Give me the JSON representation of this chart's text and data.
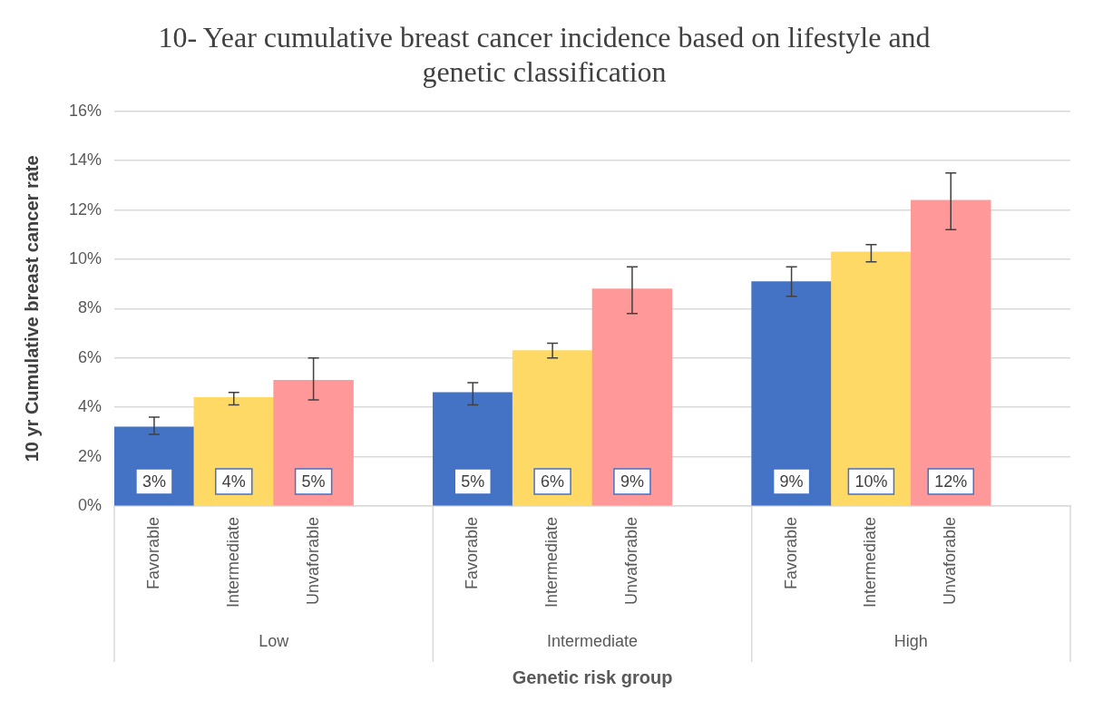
{
  "chart_data": {
    "type": "bar",
    "title": "10- Year cumulative breast cancer incidence based on lifestyle and genetic classification",
    "xlabel": "Genetic risk group",
    "ylabel": "10 yr Cumulative breast cancer rate",
    "categories": [
      "Favorable",
      "Intermediate",
      "Unvaforable",
      null,
      "Favorable",
      "Intermediate",
      "Unvaforable",
      null,
      "Favorable",
      "Intermediate",
      "Unvaforable",
      null
    ],
    "values": [
      3.2,
      4.4,
      5.1,
      null,
      4.6,
      6.3,
      8.8,
      null,
      9.1,
      10.3,
      12.4,
      null
    ],
    "colors": [
      "#4472c4",
      "#ffd966",
      "#ff9999",
      null,
      "#4472c4",
      "#ffd966",
      "#ff9999",
      null,
      "#4472c4",
      "#ffd966",
      "#ff9999",
      null
    ],
    "errors": [
      [
        2.9,
        3.6
      ],
      [
        4.1,
        4.6
      ],
      [
        4.3,
        6.0
      ],
      null,
      [
        4.1,
        5.0
      ],
      [
        6.0,
        6.6
      ],
      [
        7.8,
        9.7
      ],
      null,
      [
        8.5,
        9.7
      ],
      [
        9.9,
        10.6
      ],
      [
        11.2,
        13.5
      ],
      null
    ],
    "value_labels": [
      "3%",
      "4%",
      "5%",
      null,
      "5%",
      "6%",
      "9%",
      null,
      "9%",
      "10%",
      "12%",
      null
    ],
    "annotations": [
      "Low",
      "Intermediate",
      "High"
    ],
    "ylim": [
      0,
      16
    ],
    "yticks": [
      {
        "value": 0,
        "label": "0%"
      },
      {
        "value": 2,
        "label": "2%"
      },
      {
        "value": 4,
        "label": "4%"
      },
      {
        "value": 6,
        "label": "6%"
      },
      {
        "value": 8,
        "label": "8%"
      },
      {
        "value": 10,
        "label": "10%"
      },
      {
        "value": 12,
        "label": "12%"
      },
      {
        "value": 14,
        "label": "14%"
      },
      {
        "value": 16,
        "label": "16%"
      }
    ],
    "grid": "y"
  }
}
